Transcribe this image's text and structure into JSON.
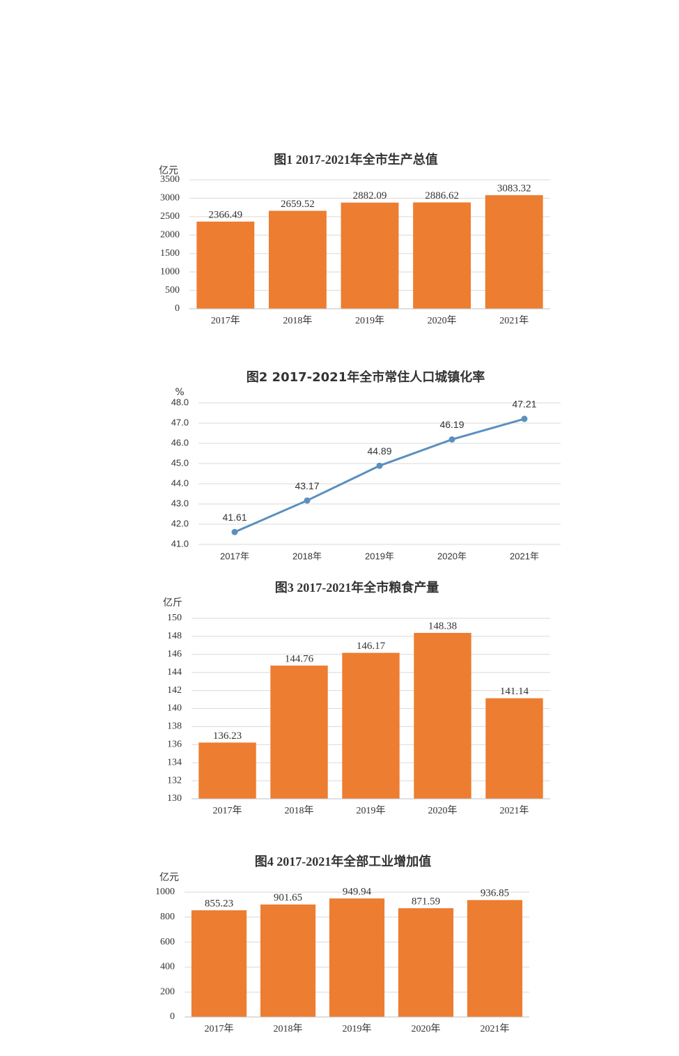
{
  "chart_data": [
    {
      "type": "bar",
      "title": "图1 2017-2021年全市生产总值",
      "y_label": "亿元",
      "categories": [
        "2017年",
        "2018年",
        "2019年",
        "2020年",
        "2021年"
      ],
      "values": [
        2366.49,
        2659.52,
        2882.09,
        2886.62,
        3083.32
      ],
      "color": "#ed7d31",
      "ylim": [
        0,
        3500
      ],
      "yticks": [
        0,
        500,
        1000,
        1500,
        2000,
        2500,
        3000,
        3500
      ],
      "grid": true
    },
    {
      "type": "line",
      "title": "图2 2017-2021年全市常住人口城镇化率",
      "y_label": "%",
      "categories": [
        "2017年",
        "2018年",
        "2019年",
        "2020年",
        "2021年"
      ],
      "values": [
        41.61,
        43.17,
        44.89,
        46.19,
        47.21
      ],
      "color": "#5b8fbf",
      "ylim": [
        41,
        48
      ],
      "yticks": [
        {
          "value": 41,
          "label": "41.0"
        },
        {
          "value": 42,
          "label": "42.0"
        },
        {
          "value": 43,
          "label": "43.0"
        },
        {
          "value": 44,
          "label": "44.0"
        },
        {
          "value": 45,
          "label": "45.0"
        },
        {
          "value": 46,
          "label": "46.0"
        },
        {
          "value": 47,
          "label": "47.0"
        },
        {
          "value": 48,
          "label": "48.0"
        }
      ],
      "grid": true
    },
    {
      "type": "bar",
      "title": "图3 2017-2021年全市粮食产量",
      "y_label": "亿斤",
      "categories": [
        "2017年",
        "2018年",
        "2019年",
        "2020年",
        "2021年"
      ],
      "values": [
        136.23,
        144.76,
        146.17,
        148.38,
        141.14
      ],
      "color": "#ed7d31",
      "ylim": [
        130,
        150
      ],
      "yticks": [
        130,
        132,
        134,
        136,
        138,
        140,
        142,
        144,
        146,
        148,
        150
      ],
      "grid": true
    },
    {
      "type": "bar",
      "title": "图4 2017-2021年全部工业增加值",
      "y_label": "亿元",
      "categories": [
        "2017年",
        "2018年",
        "2019年",
        "2020年",
        "2021年"
      ],
      "values": [
        855.23,
        901.65,
        949.94,
        871.59,
        936.85
      ],
      "color": "#ed7d31",
      "ylim": [
        0,
        1000
      ],
      "yticks": [
        0,
        200,
        400,
        600,
        800,
        1000
      ],
      "grid": true
    }
  ]
}
